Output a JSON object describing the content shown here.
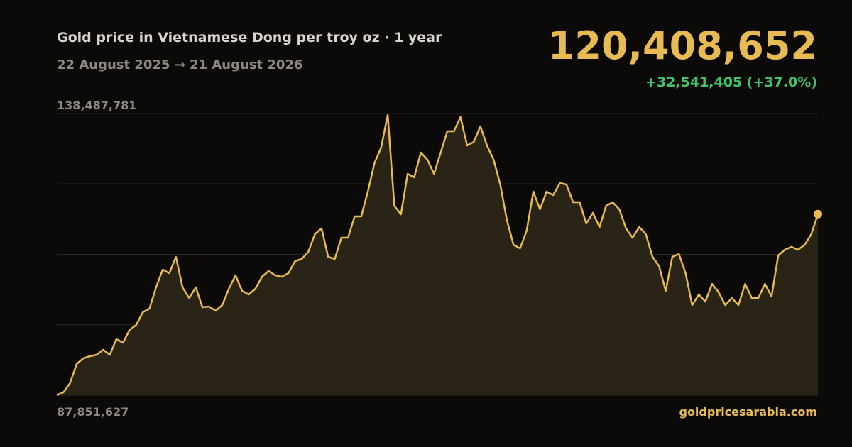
{
  "chart_data": {
    "type": "area",
    "title": "Gold price in Vietnamese Dong per troy oz · 1 year",
    "subtitle": "22 August 2025 → 21 August 2026",
    "current_price": "120,408,652",
    "change": "+32,541,405 (+37.0%)",
    "source": "goldpricesarabia.com",
    "color": "#e8bb52",
    "fill_color": "#2a2416",
    "grid": true,
    "ylim": [
      87851627,
      138487781
    ],
    "yticks": [
      {
        "value": 87851627,
        "label": "87,851,627"
      },
      {
        "value": 100510665.5,
        "label": null
      },
      {
        "value": 113169704,
        "label": null
      },
      {
        "value": 125828742.5,
        "label": null
      },
      {
        "value": 138487781,
        "label": "138,487,781"
      }
    ],
    "values": [
      87867247,
      88361815,
      90019926,
      93463695,
      94484071,
      94866712,
      95121806,
      96014635,
      95121806,
      97927840,
      97290105,
      99585951,
      100478780,
      102774626,
      103412361,
      107238771,
      110427446,
      109789711,
      112723292,
      107238771,
      105325566,
      107238771,
      103667455,
      103795002,
      103029520,
      104050096,
      106983677,
      109407070,
      106601036,
      105963301,
      106983677,
      109151976,
      110172352,
      109407070,
      109151976,
      109789711,
      111958010,
      112340651,
      113616121,
      116804696,
      117825072,
      112723292,
      112340651,
      116167061,
      116167061,
      119993471,
      119993471,
      124457616,
      129559496,
      132365530,
      138232692,
      121906676,
      120376112,
      127646291,
      127008556,
      131472701,
      130197231,
      127646291,
      131472701,
      135299111,
      135299111,
      137850051,
      132748171,
      133385906,
      136191940,
      132748171,
      130197231,
      125733086,
      119355736,
      114892591,
      114254856,
      117443531,
      124457616,
      121268941,
      124457616,
      123819881,
      125988180,
      125733086,
      122544411,
      122544411,
      118717001,
      120631206,
      118080866,
      121906676,
      122544411,
      121268941,
      117825072,
      116167061,
      118080866,
      116804696,
      112723292,
      111065181,
      106601036,
      112723292,
      113233480,
      109789711,
      104050096,
      105963301,
      104687831,
      107876506,
      106345942,
      104050096,
      105325566,
      104050096,
      107876506,
      105325566,
      105325566,
      107876506,
      105580660,
      112978386,
      113998762,
      114508950,
      113998762,
      114892591,
      116804696,
      120408652
    ]
  }
}
